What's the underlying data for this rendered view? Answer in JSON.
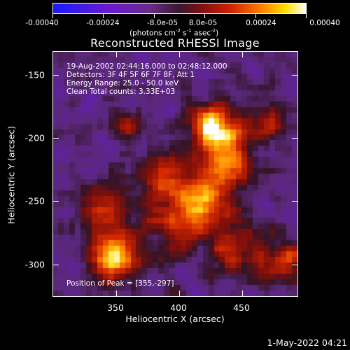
{
  "colorbar": {
    "ticks": [
      "-0.00040",
      "-0.00024",
      "-8.0e-05",
      "8.0e-05",
      "0.00024",
      "0.00040"
    ],
    "units_prefix": "(photons cm",
    "units_exp1": "-2",
    "units_s": " s",
    "units_exp2": "-1",
    "units_asec": " asec",
    "units_exp3": "-2",
    "units_suffix": ")"
  },
  "title": "Reconstructed RHESSI Image",
  "annotations": {
    "time_range": "19-Aug-2002 02:44:16.000 to 02:48:12.000",
    "detectors": "Detectors: 3F 4F 5F 6F 7F 8F, Att 1",
    "energy": "Energy Range: 25.0 - 50.0 keV",
    "clean_counts": "Clean     Total counts: 3.33E+03",
    "peak": "Position of Peak = [355,-297]"
  },
  "axes": {
    "x_title": "Heliocentric X (arcsec)",
    "y_title": "Heliocentric Y (arcsec)",
    "x_ticks": [
      "350",
      "400",
      "450"
    ],
    "y_ticks": [
      "-150",
      "-200",
      "-250",
      "-300"
    ]
  },
  "timestamp": "1-May-2022 04:21"
}
